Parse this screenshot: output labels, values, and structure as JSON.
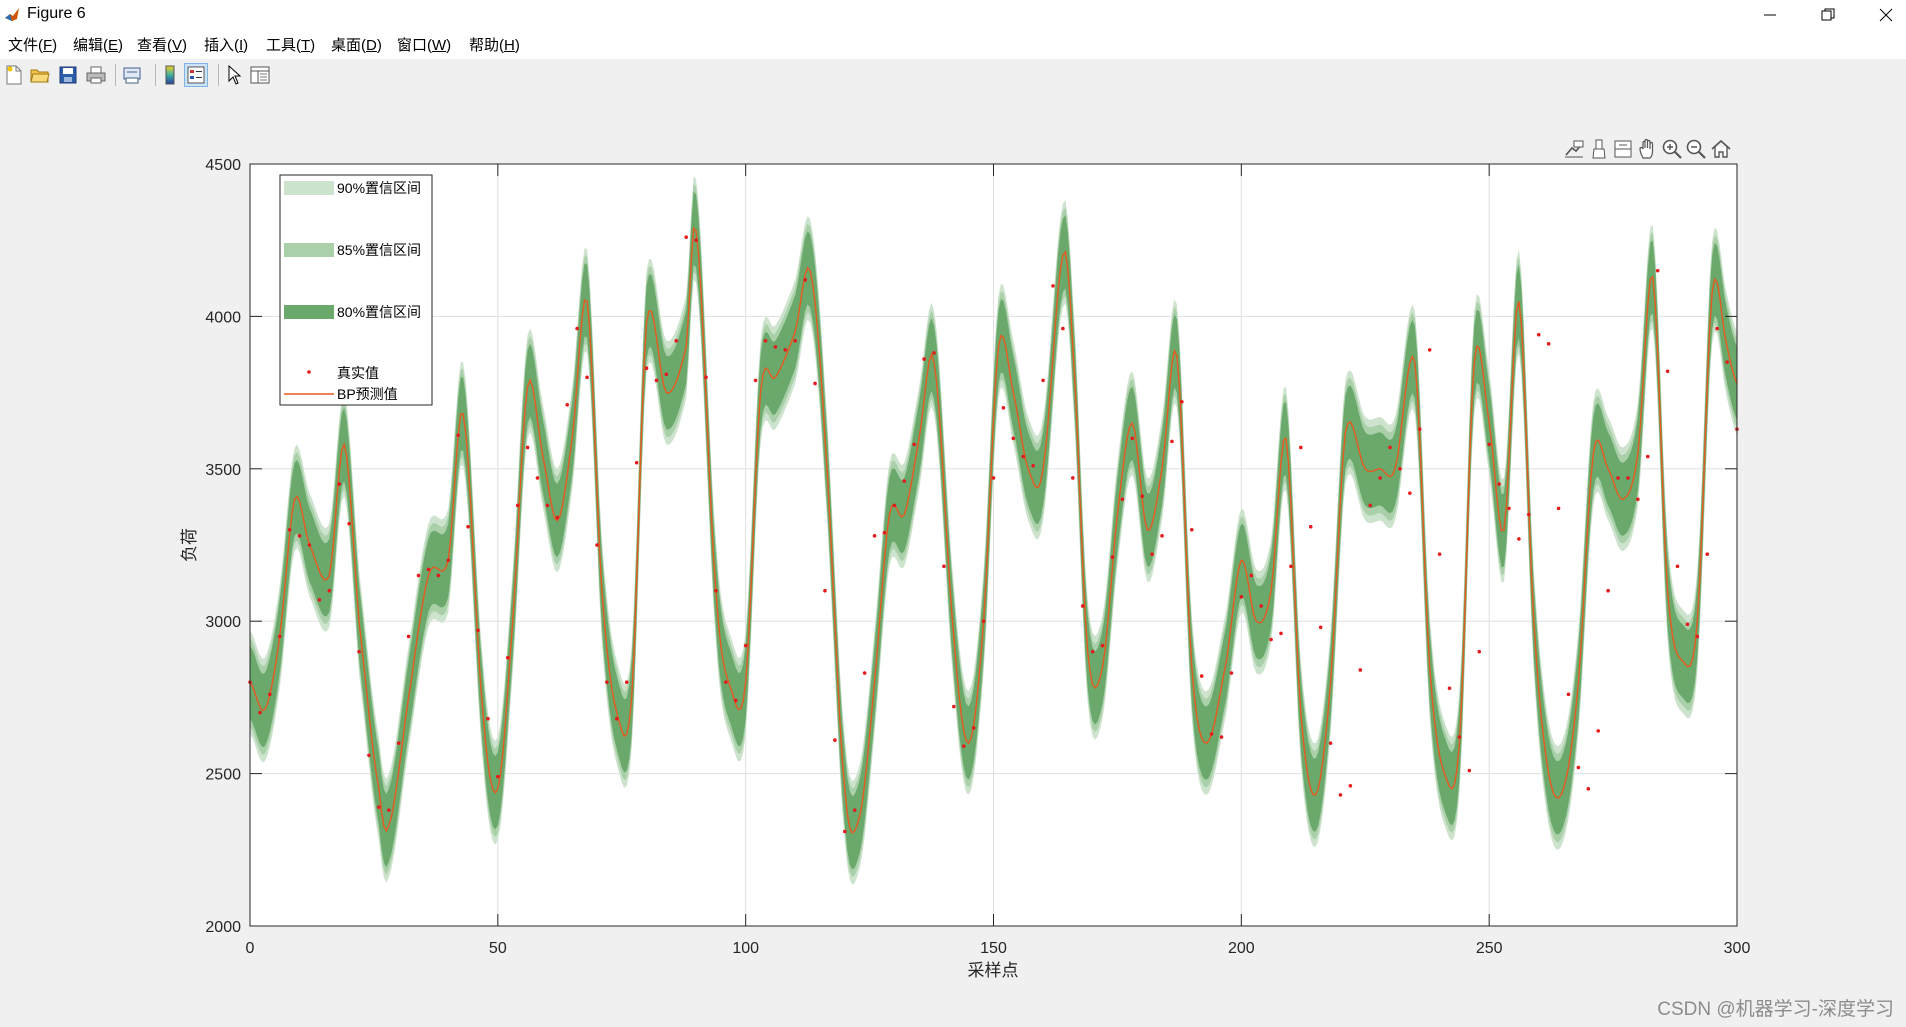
{
  "window": {
    "title": "Figure 6"
  },
  "menu": [
    {
      "label": "文件(",
      "key": "F",
      "end": ")"
    },
    {
      "label": "编辑(",
      "key": "E",
      "end": ")"
    },
    {
      "label": "查看(",
      "key": "V",
      "end": ")"
    },
    {
      "label": "插入(",
      "key": "I",
      "end": ")"
    },
    {
      "label": "工具(",
      "key": "T",
      "end": ")"
    },
    {
      "label": "桌面(",
      "key": "D",
      "end": ")"
    },
    {
      "label": "窗口(",
      "key": "W",
      "end": ")"
    },
    {
      "label": "帮助(",
      "key": "H",
      "end": ")"
    }
  ],
  "toolbar_icons": [
    "new-figure-icon",
    "open-file-icon",
    "save-icon",
    "print-icon",
    "print-preview-icon",
    "colorbar-icon",
    "legend-icon",
    "select-arrow-icon",
    "property-inspector-icon"
  ],
  "axes_toolbar_icons": [
    "data-tips-icon",
    "brush-icon",
    "restore-view-icon",
    "pan-icon",
    "zoom-in-icon",
    "zoom-out-icon",
    "home-icon"
  ],
  "watermark": "CSDN @机器学习-深度学习",
  "colors": {
    "band_90": "#cde3cd",
    "band_85": "#a9d0a9",
    "band_80": "#6aa86b",
    "prediction": "#e8591f",
    "actual": "#e41a1c",
    "grid": "#e0e0e0"
  },
  "chart_data": {
    "type": "line",
    "xlabel": "采样点",
    "ylabel": "负荷",
    "xlim": [
      0,
      300
    ],
    "ylim": [
      2000,
      4500
    ],
    "xticks": [
      0,
      50,
      100,
      150,
      200,
      250,
      300
    ],
    "yticks": [
      2000,
      2500,
      3000,
      3500,
      4000,
      4500
    ],
    "grid": true,
    "legend_position": "top-left",
    "legend": [
      "90%置信区间",
      "85%置信区间",
      "80%置信区间",
      "真实值",
      "BP预测值"
    ],
    "band_halfwidths": {
      "90%置信区间": 170,
      "85%置信区间": 145,
      "80%置信区间": 120
    },
    "series": [
      {
        "name": "BP预测值",
        "x": [
          0,
          3,
          6,
          9,
          12,
          16,
          19,
          22,
          26,
          28,
          32,
          36,
          40,
          43,
          47,
          50,
          53,
          56,
          59,
          62,
          65,
          68,
          71,
          74,
          77,
          80,
          84,
          88,
          90,
          94,
          97,
          100,
          103,
          106,
          110,
          113,
          116,
          120,
          123,
          126,
          129,
          132,
          135,
          138,
          142,
          145,
          148,
          151,
          154,
          157,
          160,
          164,
          166,
          169,
          172,
          175,
          178,
          181,
          184,
          187,
          190,
          193,
          197,
          200,
          203,
          206,
          209,
          212,
          215,
          218,
          221,
          225,
          228,
          231,
          235,
          238,
          241,
          244,
          247,
          250,
          253,
          256,
          259,
          262,
          265,
          268,
          271,
          274,
          277,
          280,
          283,
          286,
          289,
          292,
          295,
          298,
          300
        ],
        "values": [
          2800,
          2710,
          2950,
          3400,
          3250,
          3150,
          3580,
          3000,
          2450,
          2330,
          2750,
          3150,
          3200,
          3680,
          2700,
          2450,
          3000,
          3770,
          3550,
          3330,
          3600,
          4050,
          3100,
          2700,
          2750,
          3980,
          3750,
          3900,
          4280,
          3100,
          2780,
          2800,
          3750,
          3800,
          3950,
          4150,
          3600,
          2450,
          2360,
          2800,
          3350,
          3350,
          3600,
          3850,
          2950,
          2600,
          3000,
          3900,
          3750,
          3500,
          3500,
          4200,
          3900,
          2900,
          2850,
          3350,
          3650,
          3300,
          3500,
          3870,
          2850,
          2600,
          2870,
          3200,
          3000,
          3100,
          3600,
          2700,
          2430,
          2800,
          3620,
          3500,
          3500,
          3500,
          3850,
          2850,
          2500,
          2600,
          3850,
          3650,
          3300,
          4050,
          3000,
          2500,
          2450,
          2800,
          3550,
          3500,
          3400,
          3550,
          4130,
          3100,
          2870,
          3000,
          4080,
          3900,
          3780
        ]
      },
      {
        "name": "真实值",
        "x": [
          0,
          2,
          4,
          6,
          8,
          10,
          12,
          14,
          16,
          18,
          20,
          22,
          24,
          26,
          28,
          30,
          32,
          34,
          36,
          38,
          40,
          42,
          44,
          46,
          48,
          50,
          52,
          54,
          56,
          58,
          60,
          62,
          64,
          66,
          68,
          70,
          72,
          74,
          76,
          78,
          80,
          82,
          84,
          86,
          88,
          90,
          92,
          94,
          96,
          98,
          100,
          102,
          104,
          106,
          108,
          110,
          112,
          114,
          116,
          118,
          120,
          122,
          124,
          126,
          128,
          130,
          132,
          134,
          136,
          138,
          140,
          142,
          144,
          146,
          148,
          150,
          152,
          154,
          156,
          158,
          160,
          162,
          164,
          166,
          168,
          170,
          172,
          174,
          176,
          178,
          180,
          182,
          184,
          186,
          188,
          190,
          192,
          194,
          196,
          198,
          200,
          202,
          204,
          206,
          208,
          210,
          212,
          214,
          216,
          218,
          220,
          222,
          224,
          226,
          228,
          230,
          232,
          234,
          236,
          238,
          240,
          242,
          244,
          246,
          248,
          250,
          252,
          254,
          256,
          258,
          260,
          262,
          264,
          266,
          268,
          270,
          272,
          274,
          276,
          278,
          280,
          282,
          284,
          286,
          288,
          290,
          292,
          294,
          296,
          298,
          300
        ],
        "values": [
          2800,
          2700,
          2760,
          2950,
          3300,
          3280,
          3250,
          3070,
          3100,
          3450,
          3320,
          2900,
          2560,
          2390,
          2380,
          2600,
          2950,
          3150,
          3170,
          3150,
          3200,
          3610,
          3310,
          2970,
          2680,
          2490,
          2880,
          3380,
          3570,
          3470,
          3380,
          3340,
          3710,
          3960,
          3800,
          3250,
          2800,
          2680,
          2800,
          3520,
          3830,
          3790,
          3810,
          3920,
          4260,
          4250,
          3800,
          3100,
          2800,
          2740,
          2920,
          3790,
          3920,
          3900,
          3890,
          3920,
          4120,
          3780,
          3100,
          2610,
          2310,
          2380,
          2830,
          3280,
          3290,
          3380,
          3460,
          3580,
          3860,
          3880,
          3180,
          2720,
          2590,
          2650,
          3000,
          3470,
          3700,
          3600,
          3540,
          3510,
          3790,
          4100,
          3960,
          3470,
          3050,
          2900,
          2920,
          3210,
          3400,
          3600,
          3410,
          3220,
          3280,
          3590,
          3720,
          3300,
          2820,
          2630,
          2620,
          2830,
          3080,
          3150,
          3050,
          2940,
          2960,
          3180,
          3570,
          3310,
          2980,
          2600,
          2430,
          2460,
          2840,
          3380,
          3470,
          3570,
          3500,
          3420,
          3630,
          3890,
          3220,
          2780,
          2620,
          2510,
          2900,
          3580,
          3450,
          3370,
          3270,
          3350,
          3940,
          3910,
          3370,
          2760,
          2520,
          2450,
          2640,
          3100,
          3470,
          3470,
          3400,
          3540,
          4150,
          3820,
          3180,
          2990,
          2950,
          3220,
          3960,
          3850,
          3630
        ]
      }
    ]
  }
}
